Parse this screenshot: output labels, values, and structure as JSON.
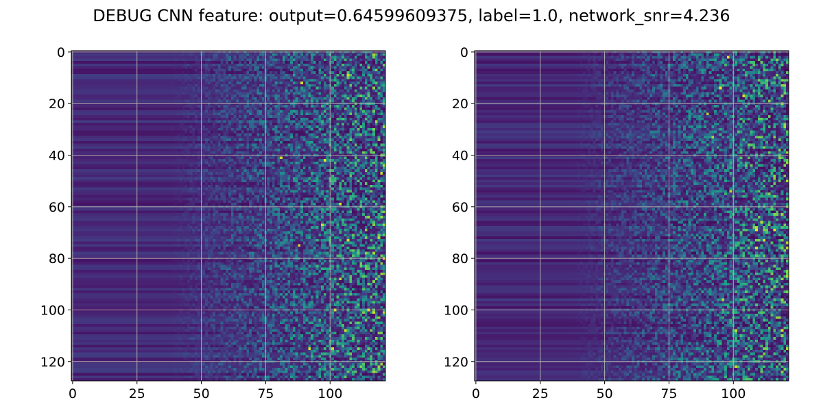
{
  "suptitle": "DEBUG CNN feature: output=0.64599609375, label=1.0, network_snr=4.236",
  "chart_data": [
    {
      "type": "heatmap",
      "colormap": "viridis",
      "rows": 128,
      "cols": 122,
      "x_ticks": [
        0,
        25,
        50,
        75,
        100
      ],
      "y_ticks": [
        0,
        20,
        40,
        60,
        80,
        100,
        120
      ],
      "xlim": [
        -0.5,
        121.5
      ],
      "ylim": [
        127.5,
        -0.5
      ],
      "grid": true,
      "seed": 7
    },
    {
      "type": "heatmap",
      "colormap": "viridis",
      "rows": 128,
      "cols": 122,
      "x_ticks": [
        0,
        25,
        50,
        75,
        100
      ],
      "y_ticks": [
        0,
        20,
        40,
        60,
        80,
        100,
        120
      ],
      "xlim": [
        -0.5,
        121.5
      ],
      "ylim": [
        127.5,
        -0.5
      ],
      "grid": true,
      "seed": 19
    }
  ]
}
